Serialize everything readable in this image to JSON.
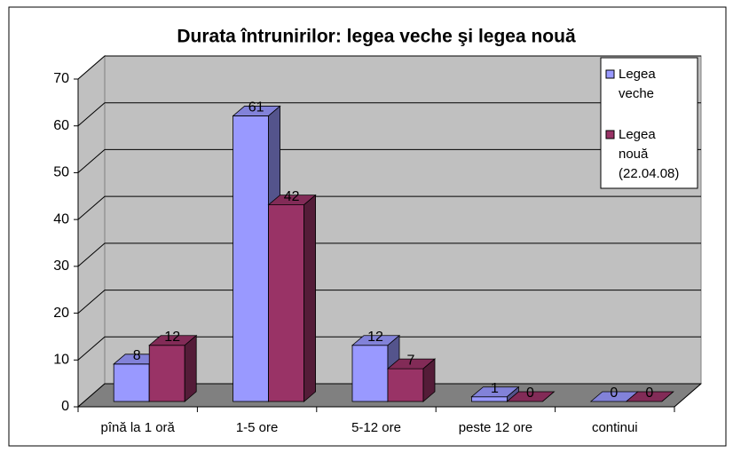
{
  "chart_data": {
    "type": "bar",
    "title": "Durata întrunirilor: legea veche şi legea nouă",
    "categories": [
      "pînă la 1 oră",
      "1-5 ore",
      "5-12 ore",
      "peste 12 ore",
      "continui"
    ],
    "series": [
      {
        "name": "Legea veche",
        "color": "#9999ff",
        "values": [
          8,
          61,
          12,
          1,
          0
        ]
      },
      {
        "name": "Legea nouă (22.04.08)",
        "color": "#993366",
        "values": [
          12,
          42,
          7,
          0,
          0
        ]
      }
    ],
    "ylim": [
      0,
      70
    ],
    "yticks": [
      0,
      10,
      20,
      30,
      40,
      50,
      60,
      70
    ],
    "grid": true,
    "legend": "top-right"
  }
}
